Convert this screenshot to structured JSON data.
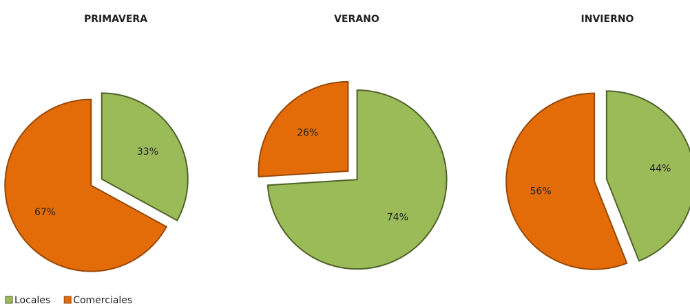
{
  "chart_data": [
    {
      "type": "pie",
      "title": "PRIMAVERA",
      "values": [
        33,
        67
      ],
      "value_labels": [
        "33%",
        "67%"
      ]
    },
    {
      "type": "pie",
      "title": "VERANO",
      "values": [
        74,
        26
      ],
      "value_labels": [
        "74%",
        "26%"
      ]
    },
    {
      "type": "pie",
      "title": "INVIERNO",
      "values": [
        44,
        56
      ],
      "value_labels": [
        "44%",
        "56%"
      ]
    }
  ],
  "legend": {
    "labels": [
      "Locales",
      "Comerciales"
    ],
    "colors": [
      "#9bbb59",
      "#e36c09"
    ]
  }
}
